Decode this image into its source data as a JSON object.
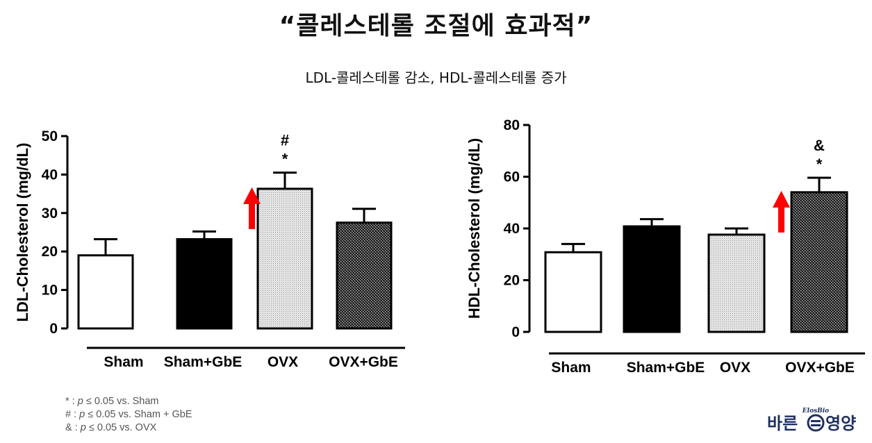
{
  "header": {
    "title": "“콜레스테롤 조절에 효과적”",
    "subtitle": "LDL-콜레스테롤 감소, HDL-콜레스테롤 증가"
  },
  "chart_data": [
    {
      "type": "bar",
      "ylabel": "LDL-Cholesterol (mg/dL)",
      "xlabel": "",
      "ylim": [
        0,
        50
      ],
      "yticks": [
        0,
        10,
        20,
        30,
        40,
        50
      ],
      "categories": [
        "Sham",
        "Sham+GbE",
        "OVX",
        "OVX+GbE"
      ],
      "values": [
        19,
        23.2,
        36.3,
        27.5
      ],
      "errors": [
        4.2,
        2.0,
        4.2,
        3.6
      ],
      "fills": [
        "white",
        "black",
        "light-dots",
        "dark-checker"
      ],
      "significance": [
        "",
        "",
        "#\n*",
        ""
      ],
      "arrow_bar_index": 2,
      "arrow_color": "#ff0000",
      "grid": false
    },
    {
      "type": "bar",
      "ylabel": "HDL-Cholesterol (mg/dL)",
      "xlabel": "",
      "ylim": [
        0,
        80
      ],
      "yticks": [
        0,
        20,
        40,
        60,
        80
      ],
      "categories": [
        "Sham",
        "Sham+GbE",
        "OVX",
        "OVX+GbE"
      ],
      "values": [
        30.8,
        40.8,
        37.6,
        54
      ],
      "errors": [
        3.2,
        2.8,
        2.4,
        5.6
      ],
      "fills": [
        "white",
        "black",
        "light-dots",
        "dark-checker"
      ],
      "significance": [
        "",
        "",
        "",
        "&\n*"
      ],
      "arrow_bar_index": 3,
      "arrow_color": "#ff0000",
      "grid": false
    }
  ],
  "footnotes": [
    {
      "symbol": "* :",
      "p": "p",
      "text": "≤ 0.05 vs. Sham"
    },
    {
      "symbol": "# :",
      "p": "p",
      "text": "≤ 0.05 vs. Sham + GbE"
    },
    {
      "symbol": "& :",
      "p": "p",
      "text": "≤ 0.05 vs. OVX"
    }
  ],
  "logo": {
    "left_text": "바른",
    "right_text": "영양",
    "arc_text": "ElosBio",
    "color": "#1f2f5e"
  }
}
